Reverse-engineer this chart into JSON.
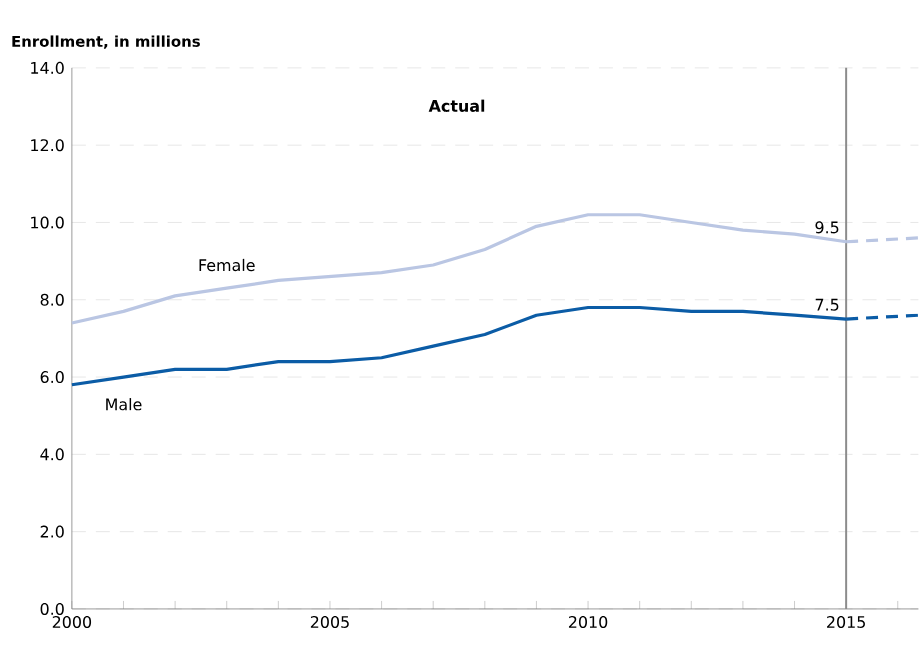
{
  "chart_data": {
    "type": "line",
    "ylabel": "Enrollment, in millions",
    "annotations": [
      "Actual"
    ],
    "xlim": [
      2000,
      2016.4
    ],
    "ylim": [
      0,
      14
    ],
    "xticks": [
      2000,
      {
        "value": 2001,
        "label": null
      },
      {
        "value": 2002,
        "label": null
      },
      {
        "value": 2003,
        "label": null
      },
      {
        "value": 2004,
        "label": null
      },
      2005,
      {
        "value": 2006,
        "label": null
      },
      {
        "value": 2007,
        "label": null
      },
      {
        "value": 2008,
        "label": null
      },
      {
        "value": 2009,
        "label": null
      },
      2010,
      {
        "value": 2011,
        "label": null
      },
      {
        "value": 2012,
        "label": null
      },
      {
        "value": 2013,
        "label": null
      },
      {
        "value": 2014,
        "label": null
      },
      2015,
      {
        "value": 2016,
        "label": null
      }
    ],
    "yticks": [
      {
        "value": 0,
        "label": "0.0"
      },
      {
        "value": 2,
        "label": "2.0"
      },
      {
        "value": 4,
        "label": "4.0"
      },
      {
        "value": 6,
        "label": "6.0"
      },
      {
        "value": 8,
        "label": "8.0"
      },
      {
        "value": 10,
        "label": "10.0"
      },
      {
        "value": 12,
        "label": "12.0"
      },
      {
        "value": 14,
        "label": "14.0"
      }
    ],
    "grid": "y",
    "marker": "none",
    "ref_lines": [
      {
        "axis": "x",
        "value": 2015,
        "color": "#8c8c8c"
      }
    ],
    "series": [
      {
        "name": "Female",
        "color": "#bac6e3",
        "x": [
          2000,
          2001,
          2002,
          2003,
          2004,
          2005,
          2006,
          2007,
          2008,
          2009,
          2010,
          2011,
          2012,
          2013,
          2014,
          2015
        ],
        "values": [
          7.4,
          7.7,
          8.1,
          8.3,
          8.5,
          8.6,
          8.7,
          8.9,
          9.3,
          9.9,
          10.2,
          10.2,
          10.0,
          9.8,
          9.7,
          9.5
        ],
        "value_labels": [
          null,
          null,
          null,
          null,
          null,
          null,
          null,
          null,
          null,
          null,
          null,
          null,
          null,
          null,
          null,
          "9.5"
        ],
        "line_style": "solid"
      },
      {
        "name": "Male",
        "color": "#0b5ca6",
        "x": [
          2000,
          2001,
          2002,
          2003,
          2004,
          2005,
          2006,
          2007,
          2008,
          2009,
          2010,
          2011,
          2012,
          2013,
          2014,
          2015
        ],
        "values": [
          5.8,
          6.0,
          6.2,
          6.2,
          6.4,
          6.4,
          6.5,
          6.8,
          7.1,
          7.6,
          7.8,
          7.8,
          7.7,
          7.7,
          7.6,
          7.5
        ],
        "value_labels": [
          null,
          null,
          null,
          null,
          null,
          null,
          null,
          null,
          null,
          null,
          null,
          null,
          null,
          null,
          null,
          "7.5"
        ],
        "line_style": "solid"
      },
      {
        "color": "#bac6e3",
        "x": [
          2015,
          2016.4
        ],
        "values": [
          9.5,
          9.6
        ],
        "line_style": "dashed"
      },
      {
        "color": "#0b5ca6",
        "x": [
          2015,
          2016.4
        ],
        "values": [
          7.5,
          7.6
        ],
        "line_style": "dashed"
      }
    ]
  }
}
